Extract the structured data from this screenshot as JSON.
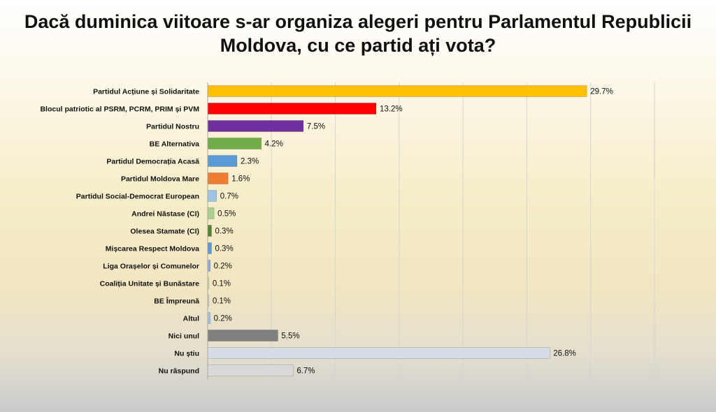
{
  "title_line1": "Dacă duminica viitoare s-ar organiza alegeri pentru Parlamentul Republicii",
  "title_line2": "Moldova, cu ce partid ați vota?",
  "chart_data": {
    "type": "bar",
    "orientation": "horizontal",
    "title": "Dacă duminica viitoare s-ar organiza alegeri pentru Parlamentul Republicii Moldova, cu ce partid ați vota?",
    "categories": [
      "Partidul Acțiune și Solidaritate",
      "Blocul patriotic al PSRM, PCRM, PRIM și PVM",
      "Partidul Nostru",
      "BE Alternativa",
      "Partidul Democrația Acasă",
      "Partidul Moldova Mare",
      "Partidul Social-Democrat European",
      "Andrei Năstase (CI)",
      "Olesea Stamate (CI)",
      "Mișcarea Respect Moldova",
      "Liga Orașelor și Comunelor",
      "Coaliția Unitate și Bunăstare",
      "BE Împreună",
      "Altul",
      "Nici unul",
      "Nu știu",
      "Nu răspund"
    ],
    "values": [
      29.7,
      13.2,
      7.5,
      4.2,
      2.3,
      1.6,
      0.7,
      0.5,
      0.3,
      0.3,
      0.2,
      0.1,
      0.1,
      0.2,
      5.5,
      26.8,
      6.7
    ],
    "value_labels": [
      "29.7%",
      "13.2%",
      "7.5%",
      "4.2%",
      "2.3%",
      "1.6%",
      "0.7%",
      "0.5%",
      "0.3%",
      "0.3%",
      "0.2%",
      "0.1%",
      "0.1%",
      "0.2%",
      "5.5%",
      "26.8%",
      "6.7%"
    ],
    "colors": [
      "#ffc000",
      "#ff0000",
      "#7030a0",
      "#70ad47",
      "#5b9bd5",
      "#ed7d31",
      "#9dc3e6",
      "#a9d18e",
      "#548235",
      "#5b9bd5",
      "#8faadc",
      "#c5e0b4",
      "#bdd7ee",
      "#9dc3e6",
      "#7f7f7f",
      "#d6dce5",
      "#d9d9d9"
    ],
    "xlim": [
      0,
      35
    ],
    "grid": true,
    "legend": "none"
  }
}
